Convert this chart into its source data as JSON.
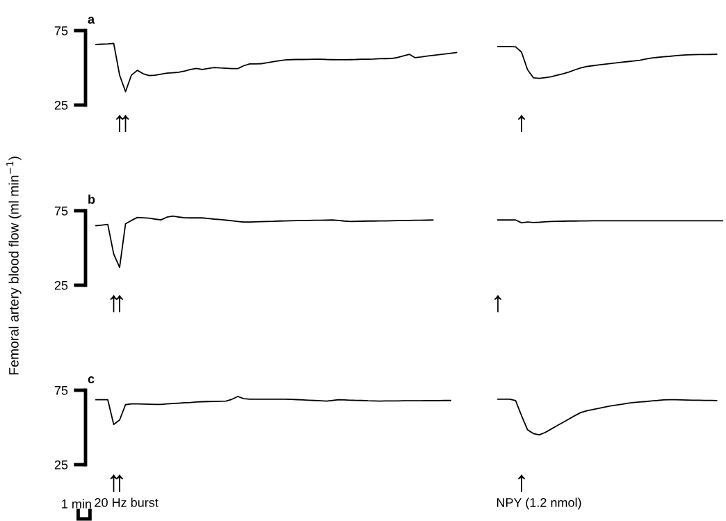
{
  "chart_data": [
    {
      "type": "line",
      "title": "a",
      "ylim": [
        25,
        75
      ],
      "yticks": [
        25,
        75
      ],
      "grid": false,
      "categories": [
        null,
        null,
        null,
        null,
        null,
        null,
        null,
        null,
        null,
        null,
        null,
        null,
        null,
        null,
        null,
        null,
        null,
        null,
        null,
        null,
        null,
        null,
        null,
        null,
        null,
        null,
        null,
        null,
        null,
        null,
        null,
        null,
        null,
        null,
        null,
        null,
        null,
        null,
        null,
        null,
        null,
        null,
        null,
        null,
        null,
        null,
        null,
        null,
        null,
        null,
        null,
        null,
        null,
        null,
        null,
        null,
        null,
        null,
        null,
        null,
        null,
        null,
        null,
        null,
        null,
        null,
        null,
        null,
        null,
        null,
        null,
        null,
        null,
        null,
        null,
        null,
        null,
        null,
        null,
        null,
        null,
        null,
        null,
        null,
        null,
        null,
        null,
        null,
        null,
        null,
        null,
        null,
        null,
        null,
        null,
        null,
        null,
        null,
        null,
        null,
        null,
        null,
        null,
        null,
        null,
        null
      ],
      "series": [
        {
          "color": "#000000",
          "values": [
            65.7,
            65.9,
            66.1,
            66.4,
            45.1,
            34,
            45.1,
            48.3,
            46,
            44.8,
            45,
            45.7,
            46.4,
            46.7,
            47,
            47.8,
            48.9,
            49.6,
            48.9,
            49.6,
            50.2,
            49.9,
            49.7,
            49.5,
            49.5,
            51.4,
            52.6,
            52.6,
            52.8,
            53.4,
            54.1,
            54.7,
            55.3,
            55.5,
            55.6,
            55.6,
            55.7,
            55.8,
            55.8,
            55.6,
            55.5,
            55.4,
            55.4,
            55.5,
            55.6,
            55.8,
            55.8,
            55.9,
            56.1,
            56.2,
            56.3,
            56.9,
            58,
            59.1,
            56.8,
            57.3,
            57.9,
            58.4,
            58.8,
            59.3,
            59.8,
            60.3,
            null,
            null,
            null,
            null,
            null,
            null,
            null,
            null,
            null,
            null,
            null,
            null,
            null,
            null,
            null,
            null,
            null,
            null,
            null,
            null,
            null,
            null,
            null,
            null,
            null,
            null,
            null,
            null,
            null,
            null,
            null,
            null,
            null,
            null,
            null,
            null,
            null,
            null,
            null,
            null,
            null,
            null,
            null,
            null
          ]
        },
        {
          "color": "#000000",
          "values": [
            null,
            null,
            null,
            null,
            null,
            null,
            null,
            null,
            null,
            null,
            null,
            null,
            null,
            null,
            null,
            null,
            null,
            null,
            null,
            null,
            null,
            null,
            null,
            null,
            null,
            null,
            null,
            null,
            null,
            null,
            null,
            null,
            null,
            null,
            null,
            null,
            null,
            null,
            null,
            null,
            null,
            null,
            null,
            null,
            null,
            null,
            null,
            null,
            null,
            null,
            null,
            null,
            null,
            null,
            null,
            null,
            null,
            null,
            null,
            null,
            null,
            null,
            null,
            null,
            null,
            null,
            null,
            null,
            64.3,
            64.3,
            64.3,
            64.1,
            60.5,
            48.8,
            43.3,
            42.9,
            43.4,
            44,
            45,
            46,
            47.1,
            48.6,
            49.9,
            50.9,
            51.4,
            51.9,
            52.4,
            52.9,
            53.3,
            53.8,
            54.2,
            54.6,
            55.1,
            55.9,
            56.6,
            57,
            57.4,
            57.7,
            58.1,
            58.5,
            58.7,
            58.8,
            58.9,
            58.9,
            59,
            59.1
          ]
        }
      ],
      "annotations": [
        "↑",
        "↑",
        "↑"
      ]
    },
    {
      "type": "line",
      "title": "b",
      "ylabel": "Femoral artery blood flow (ml min$^{−1}$)",
      "ylim": [
        25,
        75
      ],
      "yticks": [
        25,
        75
      ],
      "grid": false,
      "categories": [
        null,
        null,
        null,
        null,
        null,
        null,
        null,
        null,
        null,
        null,
        null,
        null,
        null,
        null,
        null,
        null,
        null,
        null,
        null,
        null,
        null,
        null,
        null,
        null,
        null,
        null,
        null,
        null,
        null,
        null,
        null,
        null,
        null,
        null,
        null,
        null,
        null,
        null,
        null,
        null,
        null,
        null,
        null,
        null,
        null,
        null,
        null,
        null,
        null,
        null,
        null,
        null,
        null,
        null,
        null,
        null,
        null,
        null,
        null,
        null,
        null,
        null,
        null,
        null,
        null,
        null,
        null,
        null,
        null,
        null,
        null,
        null,
        null,
        null,
        null,
        null,
        null,
        null,
        null,
        null,
        null,
        null,
        null,
        null,
        null,
        null,
        null,
        null,
        null,
        null,
        null,
        null,
        null,
        null,
        null,
        null,
        null,
        null,
        null,
        null,
        null,
        null,
        null,
        null,
        null,
        null,
        null
      ],
      "series": [
        {
          "color": "#000000",
          "values": [
            65,
            65.4,
            65.8,
            46,
            37,
            66.2,
            68.5,
            70.5,
            70.3,
            70,
            69.4,
            68.9,
            70.7,
            71.4,
            70.8,
            70.3,
            70.2,
            70.2,
            70.2,
            69.8,
            69.4,
            69.1,
            68.7,
            68.3,
            67.8,
            67.4,
            67.4,
            67.6,
            67.7,
            67.8,
            67.9,
            68.1,
            68.2,
            68.3,
            68.4,
            68.4,
            68.5,
            68.6,
            68.6,
            68.7,
            68.8,
            68.5,
            68.1,
            67.8,
            67.9,
            68,
            68.1,
            68.1,
            68.2,
            68.2,
            68.3,
            68.4,
            68.4,
            68.5,
            68.6,
            68.6,
            68.7,
            68.8,
            null,
            null,
            null,
            null,
            null,
            null,
            null,
            null,
            null,
            null,
            null,
            null,
            null,
            null,
            null,
            null,
            null,
            null,
            null,
            null,
            null,
            null,
            null,
            null,
            null,
            null,
            null,
            null,
            null,
            null,
            null,
            null,
            null,
            null,
            null,
            null,
            null,
            null,
            null,
            null,
            null,
            null,
            null,
            null,
            null,
            null,
            null,
            null,
            null
          ]
        },
        {
          "color": "#000000",
          "values": [
            null,
            null,
            null,
            null,
            null,
            null,
            null,
            null,
            null,
            null,
            null,
            null,
            null,
            null,
            null,
            null,
            null,
            null,
            null,
            null,
            null,
            null,
            null,
            null,
            null,
            null,
            null,
            null,
            null,
            null,
            null,
            null,
            null,
            null,
            null,
            null,
            null,
            null,
            null,
            null,
            null,
            null,
            null,
            null,
            null,
            null,
            null,
            null,
            null,
            null,
            null,
            null,
            null,
            null,
            null,
            null,
            null,
            null,
            null,
            null,
            null,
            null,
            null,
            null,
            null,
            null,
            null,
            null,
            68.8,
            68.8,
            68.8,
            68.8,
            66.9,
            67.5,
            67.1,
            67.3,
            67.6,
            67.8,
            67.9,
            68,
            68.1,
            68.1,
            68.2,
            68.2,
            68.3,
            68.3,
            68.3,
            68.3,
            68.3,
            68.3,
            68.3,
            68.3,
            68.3,
            68.3,
            68.3,
            68.3,
            68.3,
            68.3,
            68.3,
            68.3,
            68.3,
            68.3,
            68.3,
            68.3,
            68.3,
            68.3,
            68.3
          ]
        }
      ],
      "annotations": [
        "↑",
        "↑",
        "↑"
      ]
    },
    {
      "type": "line",
      "title": "c",
      "ylim": [
        25,
        75
      ],
      "yticks": [
        25,
        75
      ],
      "grid": false,
      "categories": [
        null,
        null,
        null,
        null,
        null,
        null,
        null,
        null,
        null,
        null,
        null,
        null,
        null,
        null,
        null,
        null,
        null,
        null,
        null,
        null,
        null,
        null,
        null,
        null,
        null,
        null,
        null,
        null,
        null,
        null,
        null,
        null,
        null,
        null,
        null,
        null,
        null,
        null,
        null,
        null,
        null,
        null,
        null,
        null,
        null,
        null,
        null,
        null,
        null,
        null,
        null,
        null,
        null,
        null,
        null,
        null,
        null,
        null,
        null,
        null,
        null,
        null,
        null,
        null,
        null,
        null,
        null,
        null,
        null,
        null,
        null,
        null,
        null,
        null,
        null,
        null,
        null,
        null,
        null,
        null,
        null,
        null,
        null,
        null,
        null,
        null,
        null,
        null,
        null,
        null,
        null,
        null,
        null,
        null,
        null,
        null,
        null,
        null,
        null,
        null,
        null,
        null,
        null,
        null,
        null,
        null
      ],
      "series": [
        {
          "color": "#000000",
          "values": [
            68.6,
            68.6,
            68.6,
            52,
            55,
            65.3,
            65.8,
            65.8,
            65.7,
            65.6,
            65.5,
            65.5,
            65.8,
            66.1,
            66.3,
            66.6,
            66.8,
            67.1,
            67.3,
            67.4,
            67.5,
            67.6,
            67.7,
            68.9,
            70.8,
            69.3,
            69,
            69,
            69,
            69,
            69,
            69,
            69,
            68.9,
            68.7,
            68.5,
            68.3,
            68.1,
            67.9,
            67.7,
            68.1,
            68.6,
            68.5,
            68.3,
            68.2,
            68.1,
            67.9,
            67.8,
            67.7,
            67.8,
            67.8,
            67.8,
            67.9,
            67.9,
            67.9,
            67.9,
            68,
            68,
            68,
            68.1,
            68.1,
            null,
            null,
            null,
            null,
            null,
            null,
            null,
            null,
            null,
            null,
            null,
            null,
            null,
            null,
            null,
            null,
            null,
            null,
            null,
            null,
            null,
            null,
            null,
            null,
            null,
            null,
            null,
            null,
            null,
            null,
            null,
            null,
            null,
            null,
            null,
            null,
            null,
            null,
            null,
            null,
            null,
            null,
            null,
            null,
            null
          ]
        },
        {
          "color": "#000000",
          "values": [
            null,
            null,
            null,
            null,
            null,
            null,
            null,
            null,
            null,
            null,
            null,
            null,
            null,
            null,
            null,
            null,
            null,
            null,
            null,
            null,
            null,
            null,
            null,
            null,
            null,
            null,
            null,
            null,
            null,
            null,
            null,
            null,
            null,
            null,
            null,
            null,
            null,
            null,
            null,
            null,
            null,
            null,
            null,
            null,
            null,
            null,
            null,
            null,
            null,
            null,
            null,
            null,
            null,
            null,
            null,
            null,
            null,
            null,
            null,
            null,
            null,
            null,
            null,
            null,
            null,
            null,
            null,
            null,
            69,
            69,
            69,
            68,
            57.9,
            48.5,
            45.9,
            45,
            46.6,
            48.9,
            51.2,
            53.4,
            55.6,
            57.9,
            60,
            61.2,
            62,
            62.8,
            63.6,
            64.4,
            65,
            65.6,
            66.3,
            66.8,
            67.1,
            67.4,
            67.8,
            68.1,
            68.5,
            68.6,
            68.6,
            68.5,
            68.4,
            68.3,
            68.3,
            68.2,
            68.2,
            68.1
          ]
        }
      ],
      "annotations": [
        "↑",
        "↑",
        "↑",
        "20 Hz burst",
        "NPY (1.2 nmol)",
        "1 min"
      ]
    }
  ]
}
